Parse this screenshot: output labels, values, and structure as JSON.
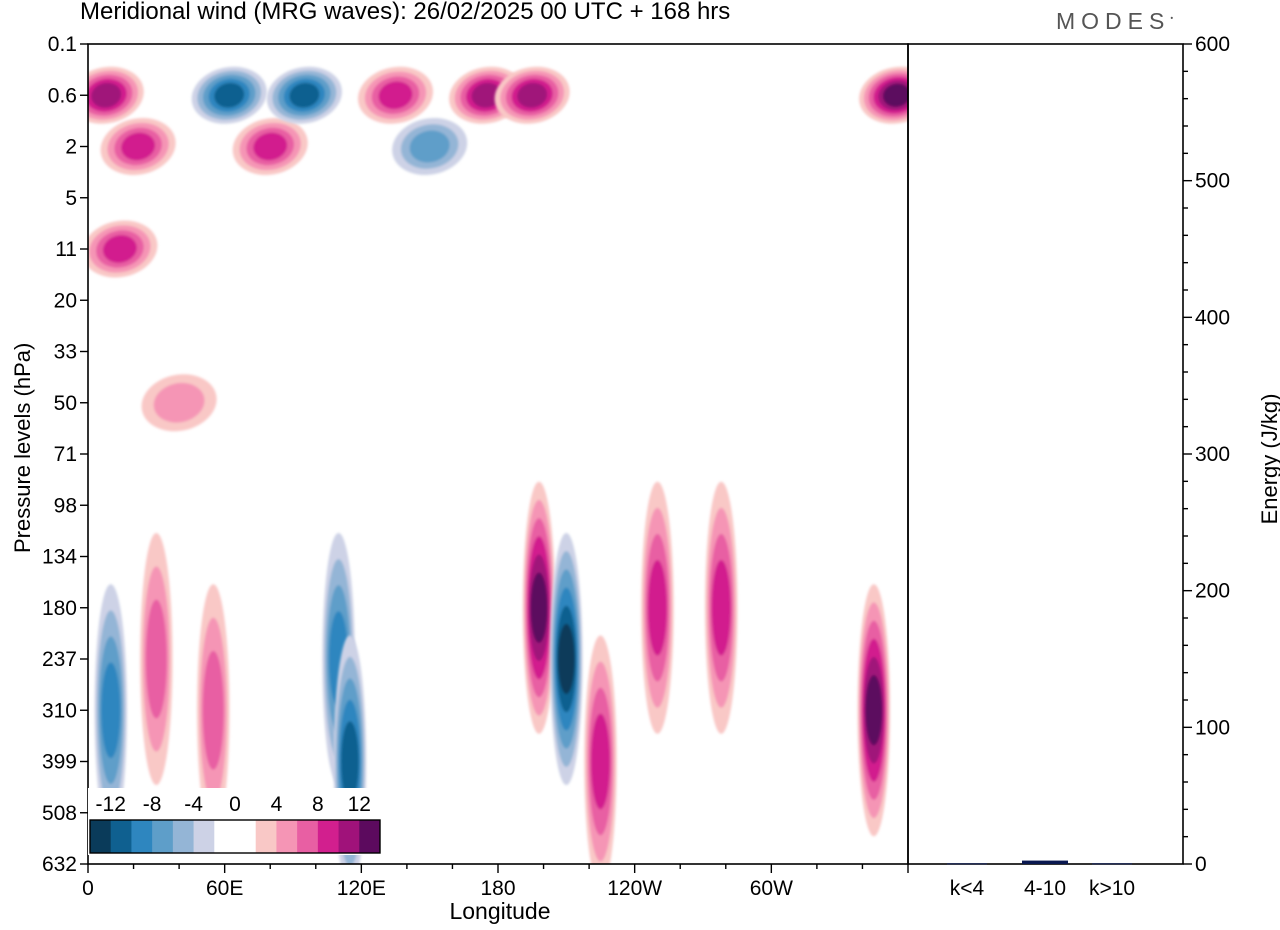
{
  "header": {
    "title": "Meridional wind (MRG waves):  26/02/2025  00 UTC  + 168 hrs",
    "brand": "MODES"
  },
  "chart_data": [
    {
      "type": "heatmap",
      "title": "Meridional wind (MRG waves):  26/02/2025  00 UTC  + 168 hrs",
      "xlabel": "Longitude",
      "ylabel": "Pressure levels (hPa)",
      "x_ticks": [
        "0",
        "60E",
        "120E",
        "180",
        "120W",
        "60W"
      ],
      "x_tick_degrees": [
        0,
        60,
        120,
        180,
        240,
        300
      ],
      "xlim": [
        0,
        360
      ],
      "y_ticks": [
        "0.1",
        "0.6",
        "2",
        "5",
        "11",
        "20",
        "33",
        "50",
        "71",
        "98",
        "134",
        "180",
        "237",
        "310",
        "399",
        "508",
        "632"
      ],
      "colorbar": {
        "labels": [
          "-12",
          "-8",
          "-4",
          "0",
          "4",
          "8",
          "12"
        ],
        "levels": [
          -14,
          -12,
          -10,
          -8,
          -6,
          -4,
          -2,
          0,
          2,
          4,
          6,
          8,
          10,
          12,
          14
        ],
        "colors": [
          "#0a3b5a",
          "#0f6090",
          "#2e86bf",
          "#5e9ec9",
          "#94b5d6",
          "#cdd2e6",
          "#ffffff",
          "#ffffff",
          "#f9c8c6",
          "#f595b5",
          "#e85fa3",
          "#d21f8e",
          "#a0127a",
          "#5c0a5e"
        ]
      },
      "features": [
        {
          "lon": 8,
          "level": "0.6",
          "value": 10
        },
        {
          "lon": 22,
          "level": "2",
          "value": 8
        },
        {
          "lon": 14,
          "level": "11",
          "value": 8
        },
        {
          "lon": 40,
          "level": "50",
          "value": 4
        },
        {
          "lon": 62,
          "level": "0.6",
          "value": -10
        },
        {
          "lon": 80,
          "level": "2",
          "value": 8
        },
        {
          "lon": 95,
          "level": "0.6",
          "value": -10
        },
        {
          "lon": 135,
          "level": "0.6",
          "value": 8
        },
        {
          "lon": 175,
          "level": "0.6",
          "value": 10
        },
        {
          "lon": 195,
          "level": "0.6",
          "value": 10
        },
        {
          "lon": 150,
          "level": "2",
          "value": -6
        },
        {
          "lon": 10,
          "level": "310",
          "value": -8
        },
        {
          "lon": 30,
          "level": "237",
          "value": 6
        },
        {
          "lon": 55,
          "level": "310",
          "value": 6
        },
        {
          "lon": 110,
          "level": "237",
          "value": -8
        },
        {
          "lon": 115,
          "level": "399",
          "value": -10
        },
        {
          "lon": 198,
          "level": "180",
          "value": 12
        },
        {
          "lon": 210,
          "level": "237",
          "value": -12
        },
        {
          "lon": 225,
          "level": "399",
          "value": 8
        },
        {
          "lon": 250,
          "level": "180",
          "value": 8
        },
        {
          "lon": 278,
          "level": "180",
          "value": 8
        },
        {
          "lon": 345,
          "level": "310",
          "value": 12
        },
        {
          "lon": 355,
          "level": "0.6",
          "value": 12
        }
      ]
    },
    {
      "type": "bar",
      "categories": [
        "k<4",
        "4-10",
        "k>10"
      ],
      "values": [
        0.5,
        2.5,
        0.5
      ],
      "ylabel": "Energy (J/kg)",
      "ylim": [
        0,
        600
      ],
      "y_ticks": [
        "0",
        "100",
        "200",
        "300",
        "400",
        "500",
        "600"
      ],
      "bar_color": "#0a1850"
    }
  ]
}
